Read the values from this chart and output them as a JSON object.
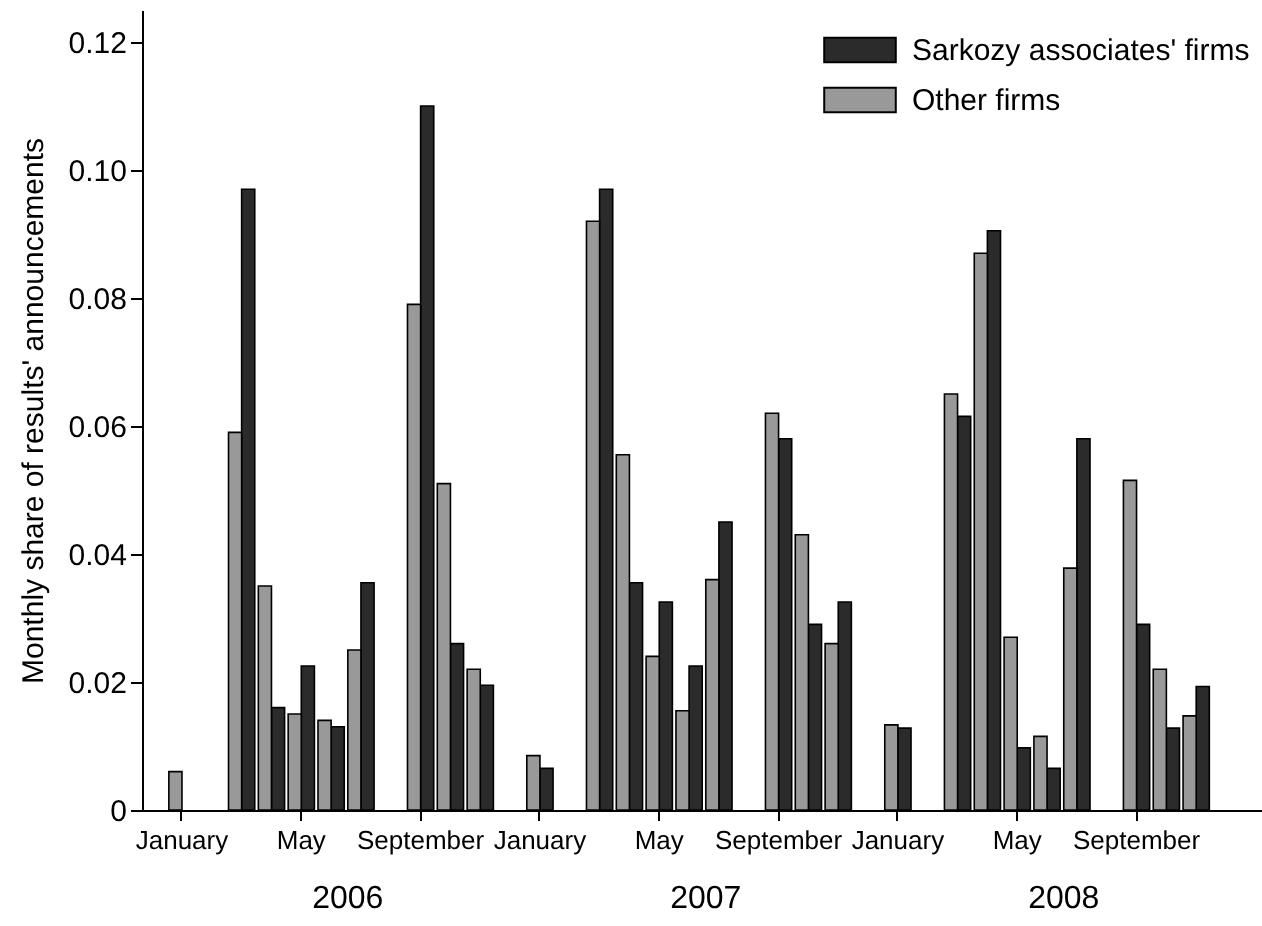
{
  "chart_data": {
    "type": "bar",
    "ylabel": "Monthly share of results' announcements",
    "categories": [
      "January",
      null,
      null,
      null,
      "May",
      null,
      null,
      null,
      "September",
      null,
      null,
      null,
      "January",
      null,
      null,
      null,
      "May",
      null,
      null,
      null,
      "September",
      null,
      null,
      null,
      "January",
      null,
      null,
      null,
      "May",
      null,
      null,
      null,
      "September",
      null,
      null,
      null
    ],
    "series": [
      {
        "name": "Sarkozy associates' firms",
        "color": "#2b2b2b",
        "values": [
          null,
          null,
          0.097,
          0.016,
          0.0225,
          0.013,
          0.0355,
          null,
          0.11,
          0.026,
          0.0195,
          null,
          0.0065,
          null,
          0.097,
          0.0355,
          0.0325,
          0.0225,
          0.045,
          null,
          0.058,
          0.029,
          0.0325,
          null,
          0.0128,
          null,
          0.0615,
          0.0905,
          0.0097,
          0.0065,
          0.058,
          null,
          0.029,
          0.0128,
          0.0193,
          null
        ]
      },
      {
        "name": "Other firms",
        "color": "#999999",
        "values": [
          0.006,
          null,
          0.059,
          0.035,
          0.015,
          0.014,
          0.025,
          null,
          0.079,
          0.051,
          0.022,
          null,
          0.0085,
          null,
          0.092,
          0.0555,
          0.024,
          0.0155,
          0.036,
          null,
          0.062,
          0.043,
          0.026,
          null,
          0.0133,
          null,
          0.065,
          0.087,
          0.027,
          0.0115,
          0.0378,
          null,
          0.0515,
          0.022,
          0.0147,
          null
        ]
      }
    ],
    "ylim": [
      0,
      0.125
    ],
    "yticks": [
      0,
      0.02,
      0.04,
      0.06,
      0.08,
      {
        "value": 0.1,
        "label": "0.10"
      },
      0.12
    ],
    "grid": false,
    "legend": "top right",
    "annotations": [
      "2006",
      "2007",
      "2008"
    ]
  }
}
